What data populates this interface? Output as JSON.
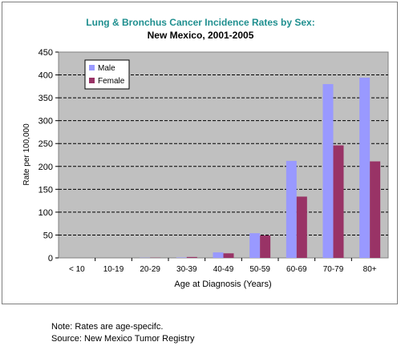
{
  "chart_data": {
    "type": "bar",
    "title": "Lung & Bronchus Cancer Incidence Rates by Sex:",
    "subtitle": "New Mexico, 2001-2005",
    "xlabel": "Age at Diagnosis (Years)",
    "ylabel": "Rate per 100,000",
    "ylim": [
      0,
      450
    ],
    "yticks": [
      "0",
      "50",
      "100",
      "150",
      "200",
      "250",
      "300",
      "350",
      "400",
      "450"
    ],
    "grid": true,
    "legend_position": "top-left",
    "categories": [
      "< 10",
      "10-19",
      "20-29",
      "30-39",
      "40-49",
      "50-59",
      "60-69",
      "70-79",
      "80+"
    ],
    "series": [
      {
        "name": "Male",
        "color": "#9999ff",
        "values": [
          0,
          0,
          0.5,
          1,
          12,
          54,
          212,
          380,
          394
        ]
      },
      {
        "name": "Female",
        "color": "#993366",
        "values": [
          0,
          0,
          0.5,
          2,
          10,
          49,
          134,
          246,
          211
        ]
      }
    ],
    "title_color": "#1f8f8f",
    "plot_background": "#c0c0c0"
  },
  "notes": {
    "line1": "Note: Rates are age-specifc.",
    "line2": "Source: New Mexico Tumor Registry"
  }
}
